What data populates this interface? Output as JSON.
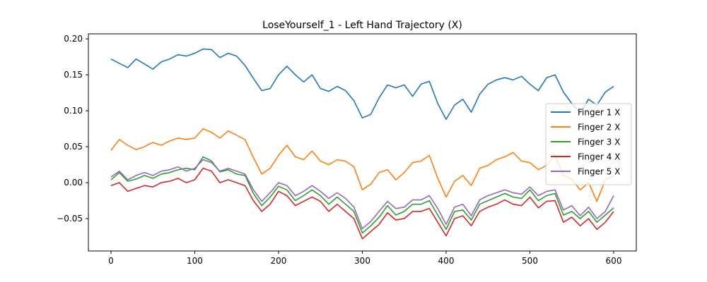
{
  "chart_data": {
    "type": "line",
    "title": "LoseYourself_1 - Left Hand Trajectory (X)",
    "xlabel": "",
    "ylabel": "",
    "xlim": [
      -27,
      627
    ],
    "ylim": [
      -0.095,
      0.207
    ],
    "xticks": [
      0,
      100,
      200,
      300,
      400,
      500,
      600
    ],
    "yticks": [
      -0.05,
      0.0,
      0.05,
      0.1,
      0.15,
      0.2
    ],
    "ytick_labels": [
      "−0.05",
      "0.00",
      "0.05",
      "0.10",
      "0.15",
      "0.20"
    ],
    "grid": false,
    "legend_position": "right",
    "series": [
      {
        "name": "Finger 1 X",
        "color": "#1f77b4",
        "x": [
          0,
          10,
          20,
          30,
          40,
          50,
          60,
          70,
          80,
          90,
          100,
          110,
          120,
          130,
          140,
          150,
          160,
          170,
          180,
          190,
          200,
          210,
          220,
          230,
          240,
          250,
          260,
          270,
          280,
          290,
          300,
          310,
          320,
          330,
          340,
          350,
          360,
          370,
          380,
          390,
          400,
          410,
          420,
          430,
          440,
          450,
          460,
          470,
          480,
          490,
          500,
          510,
          520,
          530,
          540,
          550,
          560,
          570,
          580,
          590,
          600
        ],
        "values": [
          0.172,
          0.166,
          0.16,
          0.172,
          0.165,
          0.158,
          0.168,
          0.172,
          0.178,
          0.176,
          0.18,
          0.186,
          0.185,
          0.174,
          0.18,
          0.176,
          0.163,
          0.145,
          0.128,
          0.131,
          0.15,
          0.162,
          0.15,
          0.14,
          0.15,
          0.131,
          0.127,
          0.134,
          0.128,
          0.114,
          0.09,
          0.095,
          0.118,
          0.136,
          0.132,
          0.136,
          0.12,
          0.137,
          0.141,
          0.11,
          0.088,
          0.108,
          0.116,
          0.098,
          0.123,
          0.137,
          0.143,
          0.146,
          0.143,
          0.148,
          0.137,
          0.128,
          0.146,
          0.15,
          0.126,
          0.11,
          0.097,
          0.116,
          0.108,
          0.126,
          0.134
        ]
      },
      {
        "name": "Finger 2 X",
        "color": "#ff7f0e",
        "x": [
          0,
          10,
          20,
          30,
          40,
          50,
          60,
          70,
          80,
          90,
          100,
          110,
          120,
          130,
          140,
          150,
          160,
          170,
          180,
          190,
          200,
          210,
          220,
          230,
          240,
          250,
          260,
          270,
          280,
          290,
          300,
          310,
          320,
          330,
          340,
          350,
          360,
          370,
          380,
          390,
          400,
          410,
          420,
          430,
          440,
          450,
          460,
          470,
          480,
          490,
          500,
          510,
          520,
          530,
          540,
          550,
          560,
          570,
          580,
          590,
          600
        ],
        "values": [
          0.045,
          0.06,
          0.052,
          0.046,
          0.05,
          0.056,
          0.052,
          0.058,
          0.062,
          0.06,
          0.062,
          0.075,
          0.07,
          0.062,
          0.072,
          0.066,
          0.06,
          0.035,
          0.012,
          0.02,
          0.038,
          0.052,
          0.036,
          0.032,
          0.044,
          0.03,
          0.025,
          0.032,
          0.03,
          0.022,
          -0.01,
          -0.002,
          0.014,
          0.018,
          0.004,
          0.014,
          0.028,
          0.03,
          0.038,
          0.006,
          -0.02,
          0.002,
          0.01,
          -0.004,
          0.02,
          0.024,
          0.032,
          0.036,
          0.042,
          0.03,
          0.028,
          0.018,
          0.024,
          0.038,
          0.01,
          0.005,
          -0.01,
          0.0,
          -0.026,
          0.004,
          0.01
        ]
      },
      {
        "name": "Finger 3 X",
        "color": "#2ca02c",
        "x": [
          0,
          10,
          20,
          30,
          40,
          50,
          60,
          70,
          80,
          90,
          100,
          110,
          120,
          130,
          140,
          150,
          160,
          170,
          180,
          190,
          200,
          210,
          220,
          230,
          240,
          250,
          260,
          270,
          280,
          290,
          300,
          310,
          320,
          330,
          340,
          350,
          360,
          370,
          380,
          390,
          400,
          410,
          420,
          430,
          440,
          450,
          460,
          470,
          480,
          490,
          500,
          510,
          520,
          530,
          540,
          550,
          560,
          570,
          580,
          590,
          600
        ],
        "values": [
          0.004,
          0.014,
          0.002,
          0.005,
          0.01,
          0.006,
          0.012,
          0.014,
          0.018,
          0.02,
          0.018,
          0.036,
          0.03,
          0.015,
          0.018,
          0.012,
          0.01,
          -0.015,
          -0.032,
          -0.02,
          -0.005,
          -0.01,
          -0.025,
          -0.018,
          -0.01,
          -0.018,
          -0.03,
          -0.02,
          -0.03,
          -0.04,
          -0.07,
          -0.06,
          -0.048,
          -0.032,
          -0.045,
          -0.04,
          -0.03,
          -0.03,
          -0.025,
          -0.045,
          -0.065,
          -0.04,
          -0.038,
          -0.052,
          -0.03,
          -0.025,
          -0.02,
          -0.015,
          -0.02,
          -0.022,
          -0.01,
          -0.025,
          -0.018,
          -0.015,
          -0.045,
          -0.04,
          -0.05,
          -0.04,
          -0.055,
          -0.045,
          -0.035
        ]
      },
      {
        "name": "Finger 4 X",
        "color": "#d62728",
        "x": [
          0,
          10,
          20,
          30,
          40,
          50,
          60,
          70,
          80,
          90,
          100,
          110,
          120,
          130,
          140,
          150,
          160,
          170,
          180,
          190,
          200,
          210,
          220,
          230,
          240,
          250,
          260,
          270,
          280,
          290,
          300,
          310,
          320,
          330,
          340,
          350,
          360,
          370,
          380,
          390,
          400,
          410,
          420,
          430,
          440,
          450,
          460,
          470,
          480,
          490,
          500,
          510,
          520,
          530,
          540,
          550,
          560,
          570,
          580,
          590,
          600
        ],
        "values": [
          -0.004,
          0.0,
          -0.012,
          -0.008,
          -0.004,
          -0.006,
          0.0,
          0.002,
          0.006,
          0.0,
          0.004,
          0.02,
          0.016,
          0.0,
          0.004,
          0.0,
          -0.004,
          -0.025,
          -0.04,
          -0.03,
          -0.012,
          -0.018,
          -0.032,
          -0.026,
          -0.02,
          -0.026,
          -0.04,
          -0.03,
          -0.04,
          -0.05,
          -0.078,
          -0.068,
          -0.058,
          -0.042,
          -0.052,
          -0.05,
          -0.04,
          -0.04,
          -0.036,
          -0.055,
          -0.074,
          -0.05,
          -0.046,
          -0.06,
          -0.04,
          -0.034,
          -0.03,
          -0.024,
          -0.03,
          -0.032,
          -0.02,
          -0.035,
          -0.026,
          -0.025,
          -0.055,
          -0.048,
          -0.06,
          -0.05,
          -0.065,
          -0.055,
          -0.04
        ]
      },
      {
        "name": "Finger 5 X",
        "color": "#9467bd",
        "x": [
          0,
          10,
          20,
          30,
          40,
          50,
          60,
          70,
          80,
          90,
          100,
          110,
          120,
          130,
          140,
          150,
          160,
          170,
          180,
          190,
          200,
          210,
          220,
          230,
          240,
          250,
          260,
          270,
          280,
          290,
          300,
          310,
          320,
          330,
          340,
          350,
          360,
          370,
          380,
          390,
          400,
          410,
          420,
          430,
          440,
          450,
          460,
          470,
          480,
          490,
          500,
          510,
          520,
          530,
          540,
          550,
          560,
          570,
          580,
          590,
          600
        ],
        "values": [
          0.008,
          0.016,
          0.004,
          0.01,
          0.014,
          0.01,
          0.016,
          0.018,
          0.022,
          0.016,
          0.02,
          0.032,
          0.028,
          0.016,
          0.02,
          0.016,
          0.012,
          -0.01,
          -0.026,
          -0.014,
          0.0,
          -0.004,
          -0.018,
          -0.012,
          -0.004,
          -0.012,
          -0.022,
          -0.014,
          -0.022,
          -0.034,
          -0.064,
          -0.054,
          -0.04,
          -0.026,
          -0.036,
          -0.034,
          -0.024,
          -0.024,
          -0.018,
          -0.036,
          -0.058,
          -0.034,
          -0.03,
          -0.046,
          -0.024,
          -0.018,
          -0.014,
          -0.01,
          -0.014,
          -0.016,
          -0.006,
          -0.018,
          -0.012,
          -0.01,
          -0.038,
          -0.032,
          -0.046,
          -0.034,
          -0.05,
          -0.04,
          -0.018
        ]
      }
    ]
  }
}
